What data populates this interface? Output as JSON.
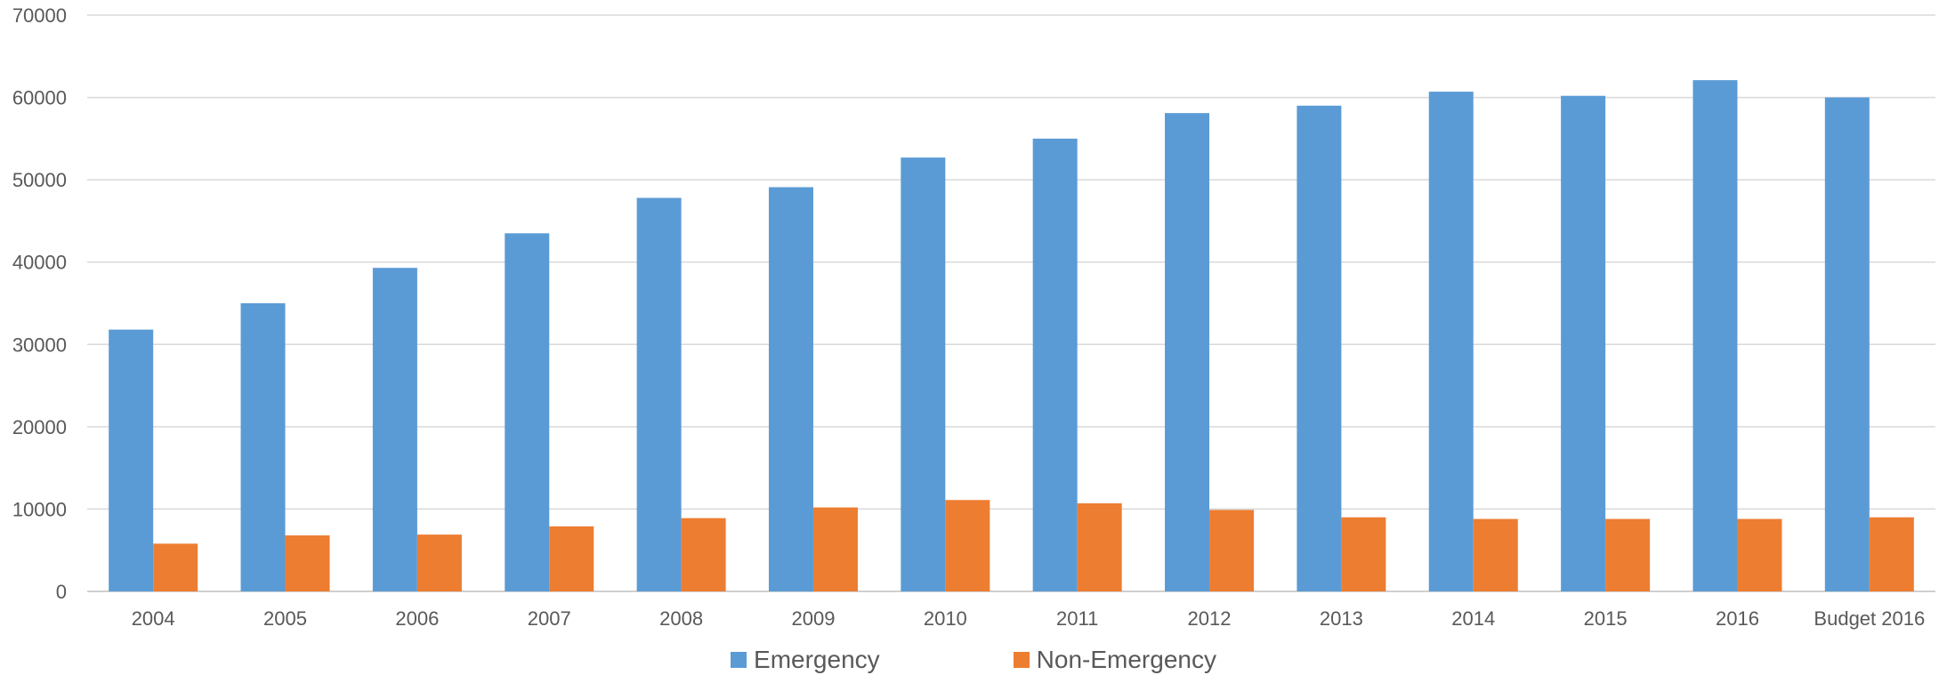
{
  "chart_data": {
    "type": "bar",
    "title": "",
    "xlabel": "",
    "ylabel": "",
    "categories": [
      "2004",
      "2005",
      "2006",
      "2007",
      "2008",
      "2009",
      "2010",
      "2011",
      "2012",
      "2013",
      "2014",
      "2015",
      "2016",
      "Budget 2016"
    ],
    "series": [
      {
        "name": "Emergency",
        "color": "#5B9BD5",
        "values": [
          31800,
          35000,
          39300,
          43500,
          47800,
          49100,
          52700,
          55000,
          58100,
          59000,
          60700,
          60200,
          62100,
          60000
        ]
      },
      {
        "name": "Non-Emergency",
        "color": "#ED7D31",
        "values": [
          5800,
          6800,
          6900,
          7900,
          8900,
          10200,
          11100,
          10700,
          9900,
          9000,
          8800,
          8800,
          8800,
          9000
        ]
      }
    ],
    "ylim": [
      0,
      70000
    ],
    "yticks": [
      "0",
      "10000",
      "20000",
      "30000",
      "40000",
      "50000",
      "60000",
      "70000"
    ],
    "grid": true,
    "legend_position": "bottom"
  }
}
